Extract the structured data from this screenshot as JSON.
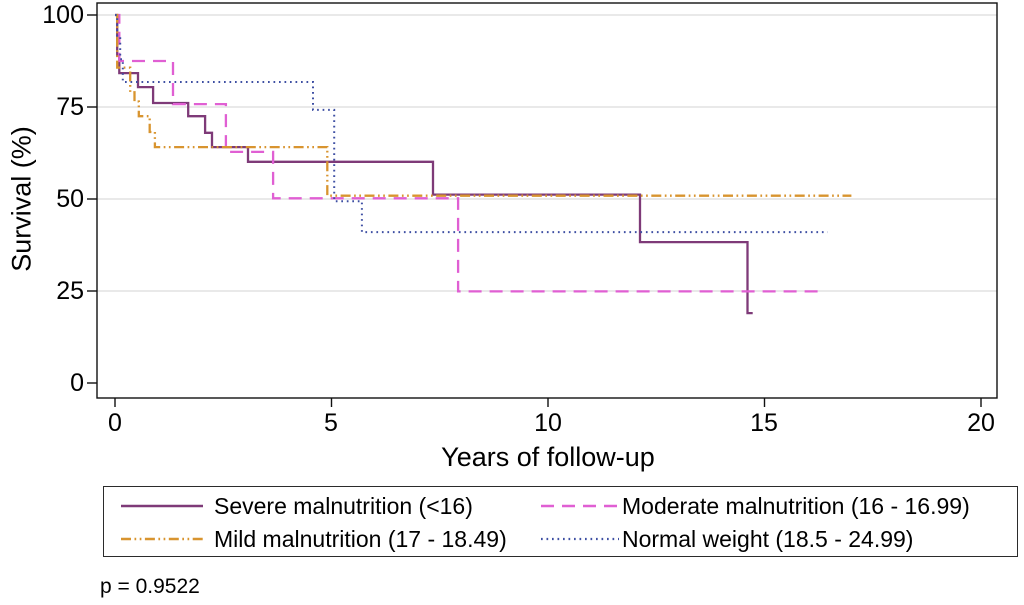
{
  "chart_data": {
    "type": "line",
    "subtype": "kaplan-meier-step-survival",
    "title": "",
    "xlabel": "Years of follow-up",
    "ylabel": "Survival (%)",
    "xlim": [
      0,
      20
    ],
    "ylim": [
      0,
      100
    ],
    "xticks": [
      "0",
      "5",
      "10",
      "15",
      "20"
    ],
    "xtick_values": [
      0,
      5,
      10,
      15,
      20
    ],
    "yticks": [
      "100",
      "75",
      "50",
      "25",
      "0"
    ],
    "ytick_values": [
      100,
      75,
      50,
      25,
      0
    ],
    "grid": "horizontal-gridlines-at-25-50-75-100",
    "legend_position": "bottom-box-2x2",
    "series": [
      {
        "id": "severe",
        "name": "Severe malnutrition (<16)",
        "style": "solid",
        "color": "#7E3A78",
        "steps": [
          [
            0,
            100
          ],
          [
            0.05,
            89
          ],
          [
            0.1,
            84.2
          ],
          [
            0.53,
            80.4
          ],
          [
            0.88,
            76.1
          ],
          [
            1.69,
            72.5
          ],
          [
            2.08,
            68
          ],
          [
            2.24,
            64.1
          ],
          [
            3.07,
            60.1
          ],
          [
            7.34,
            51.2
          ],
          [
            12.12,
            38.3
          ],
          [
            14.6,
            19
          ]
        ],
        "end_time": 14.72
      },
      {
        "id": "moderate",
        "name": "Moderate malnutrition (16 - 16.99)",
        "style": "dashed",
        "color": "#E05FD3",
        "steps": [
          [
            0,
            100
          ],
          [
            0.1,
            87.5
          ],
          [
            1.34,
            75.8
          ],
          [
            2.56,
            62.8
          ],
          [
            3.65,
            50.2
          ],
          [
            7.92,
            24.9
          ]
        ],
        "end_time": 16.23
      },
      {
        "id": "mild",
        "name": "Mild malnutrition (17 - 18.49)",
        "style": "dash-dot-dot",
        "color": "#D8942F",
        "steps": [
          [
            0,
            100
          ],
          [
            0.05,
            85.7
          ],
          [
            0.35,
            79
          ],
          [
            0.45,
            76.5
          ],
          [
            0.55,
            72.5
          ],
          [
            0.8,
            68.2
          ],
          [
            0.92,
            64.1
          ],
          [
            4.9,
            50.9
          ]
        ],
        "end_time": 17.0
      },
      {
        "id": "normal",
        "name": "Normal weight (18.5 - 24.99)",
        "style": "dotted",
        "color": "#3E4FA3",
        "steps": [
          [
            0,
            100
          ],
          [
            0.05,
            94
          ],
          [
            0.12,
            88
          ],
          [
            0.18,
            81.8
          ],
          [
            4.57,
            74.2
          ],
          [
            5.06,
            49.4
          ],
          [
            5.7,
            41
          ]
        ],
        "end_time": 16.45
      }
    ],
    "annotations": [
      {
        "text": "p = 0.9522",
        "position": "bottom-left"
      }
    ],
    "p_value": "p = 0.9522"
  }
}
